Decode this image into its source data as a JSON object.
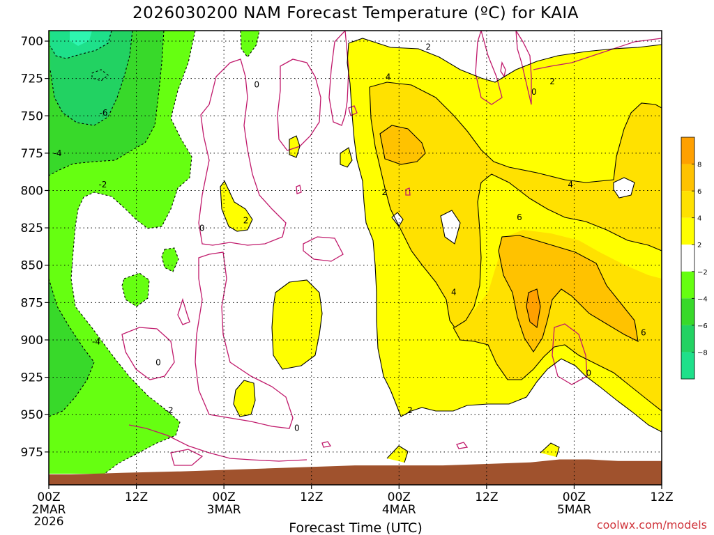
{
  "chart_data": {
    "type": "contour",
    "title": "2026030200 NAM Forecast Temperature (ºC) for KAIA",
    "xlabel": "Forecast Time (UTC)",
    "ylabel": "",
    "x_ticks": [
      {
        "hour": 0,
        "label": "00Z",
        "sub": [
          "2MAR",
          "2026"
        ]
      },
      {
        "hour": 12,
        "label": "12Z",
        "sub": []
      },
      {
        "hour": 24,
        "label": "00Z",
        "sub": [
          "3MAR"
        ]
      },
      {
        "hour": 36,
        "label": "12Z",
        "sub": []
      },
      {
        "hour": 48,
        "label": "00Z",
        "sub": [
          "4MAR"
        ]
      },
      {
        "hour": 60,
        "label": "12Z",
        "sub": []
      },
      {
        "hour": 72,
        "label": "00Z",
        "sub": [
          "5MAR"
        ]
      },
      {
        "hour": 84,
        "label": "12Z",
        "sub": []
      }
    ],
    "xlim_hours": [
      0,
      84
    ],
    "y_ticks": [
      700,
      725,
      750,
      775,
      800,
      825,
      850,
      875,
      900,
      925,
      950,
      975
    ],
    "ylim_hPa": [
      693,
      997
    ],
    "surface_pressure_hPa": [
      {
        "hour": 0,
        "p": 990
      },
      {
        "hour": 3,
        "p": 990
      },
      {
        "hour": 10,
        "p": 989
      },
      {
        "hour": 18,
        "p": 988
      },
      {
        "hour": 24,
        "p": 987
      },
      {
        "hour": 30,
        "p": 986
      },
      {
        "hour": 36,
        "p": 985
      },
      {
        "hour": 42,
        "p": 984
      },
      {
        "hour": 48,
        "p": 984
      },
      {
        "hour": 54,
        "p": 984
      },
      {
        "hour": 60,
        "p": 983
      },
      {
        "hour": 66,
        "p": 982
      },
      {
        "hour": 70,
        "p": 980
      },
      {
        "hour": 74,
        "p": 980
      },
      {
        "hour": 78,
        "p": 981
      },
      {
        "hour": 84,
        "p": 981
      }
    ],
    "contour_labels": [
      {
        "text": "-6",
        "hour": 7.5,
        "p": 749
      },
      {
        "text": "-4",
        "hour": 1.2,
        "p": 776
      },
      {
        "text": "-2",
        "hour": 7.4,
        "p": 797
      },
      {
        "text": "-4",
        "hour": 6.5,
        "p": 902
      },
      {
        "text": "-2",
        "hour": 16.5,
        "p": 948
      },
      {
        "text": "0",
        "hour": 28.5,
        "p": 730
      },
      {
        "text": "0",
        "hour": 21,
        "p": 826
      },
      {
        "text": "0",
        "hour": 15,
        "p": 916
      },
      {
        "text": "0",
        "hour": 34,
        "p": 960
      },
      {
        "text": "2",
        "hour": 27,
        "p": 821
      },
      {
        "text": "2",
        "hour": 46,
        "p": 802
      },
      {
        "text": "2",
        "hour": 52,
        "p": 705
      },
      {
        "text": "2",
        "hour": 49.5,
        "p": 948
      },
      {
        "text": "4",
        "hour": 46.5,
        "p": 725
      },
      {
        "text": "4",
        "hour": 55.5,
        "p": 869
      },
      {
        "text": "4",
        "hour": 71.5,
        "p": 797
      },
      {
        "text": "6",
        "hour": 64.5,
        "p": 819
      },
      {
        "text": "6",
        "hour": 81.5,
        "p": 896
      },
      {
        "text": "2",
        "hour": 69,
        "p": 728
      },
      {
        "text": "0",
        "hour": 66.5,
        "p": 735
      },
      {
        "text": "0",
        "hour": 74,
        "p": 923
      }
    ],
    "colorbar": {
      "levels": [
        -10,
        -8,
        -6,
        -4,
        -2,
        2,
        4,
        6,
        8,
        10
      ],
      "tick_labels": [
        "8",
        "6",
        "4",
        "2",
        "−2",
        "−4",
        "−6",
        "−8"
      ],
      "colors": {
        "m10": "#2ef5b0",
        "m8": "#1ee08a",
        "m6": "#22d262",
        "m4": "#38d92a",
        "m2": "#66ff11",
        "zero": "#ffffff",
        "p2": "#ffff00",
        "p4": "#ffe100",
        "p6": "#ffc200",
        "p8": "#ffa000"
      }
    },
    "surface_color": "#a0522d",
    "zero_line_color": "#c0196b"
  },
  "credit": "coolwx.com/models"
}
